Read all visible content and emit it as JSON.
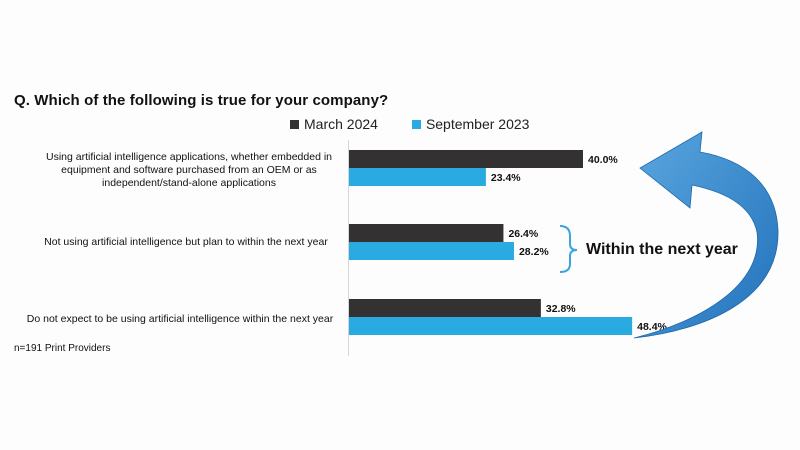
{
  "question": "Q. Which of the following is true for your company?",
  "note": "n=191 Print Providers",
  "callout": "Within the next year",
  "colors": {
    "march_2024": "#333132",
    "september_2023": "#29abe2",
    "arrow": "#2f86c9"
  },
  "chart_data": {
    "type": "bar",
    "orientation": "horizontal",
    "categories": [
      "Using artificial intelligence applications, whether embedded in equipment and software purchased from an OEM or as independent/stand-alone applications",
      "Not using artificial intelligence but plan to within the next year",
      "Do not expect to be using artificial intelligence within the next year"
    ],
    "series": [
      {
        "name": "March 2024",
        "values": [
          40.0,
          26.4,
          32.8
        ]
      },
      {
        "name": "September 2023",
        "values": [
          23.4,
          28.2,
          48.4
        ]
      }
    ],
    "value_labels": [
      [
        "40.0%",
        "26.4%",
        "32.8%"
      ],
      [
        "23.4%",
        "28.2%",
        "48.4%"
      ]
    ],
    "legend_position": "top",
    "grid": false
  }
}
